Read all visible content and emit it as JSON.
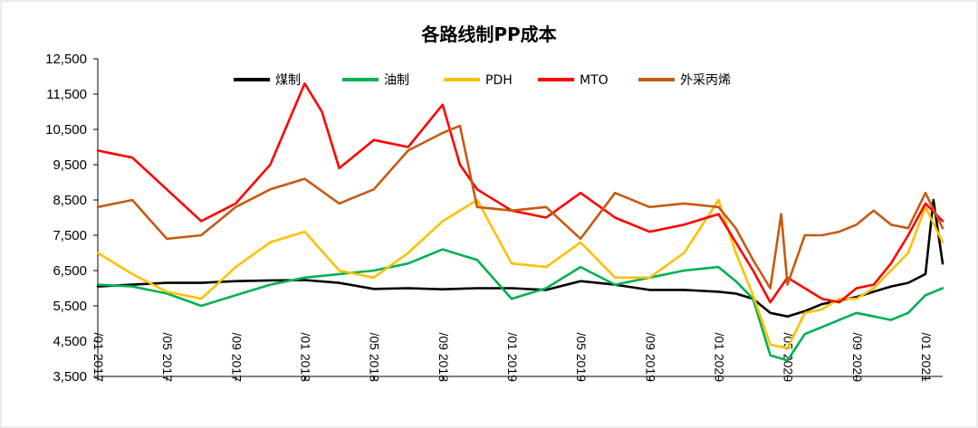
{
  "chart_data": {
    "type": "line",
    "title": "各路线制PP成本",
    "xlabel": "",
    "ylabel": "",
    "ylim": [
      3500,
      12500
    ],
    "yticks": [
      "12,500",
      "11,500",
      "10,500",
      "9,500",
      "8,500",
      "7,500",
      "6,500",
      "5,500",
      "4,500",
      "3,500"
    ],
    "x_tick_labels": [
      "2017/01",
      "2017/05",
      "2017/09",
      "2018/01",
      "2018/05",
      "2018/09",
      "2019/01",
      "2019/05",
      "2019/09",
      "2020/01",
      "2020/05",
      "2020/09",
      "2021/01"
    ],
    "x_range": [
      "2017-01",
      "2021-02"
    ],
    "grid": false,
    "legend_position": "top",
    "series": [
      {
        "name": "煤制",
        "color": "#000000",
        "x": [
          "2017-01",
          "2017-03",
          "2017-05",
          "2017-07",
          "2017-09",
          "2017-11",
          "2018-01",
          "2018-03",
          "2018-05",
          "2018-07",
          "2018-09",
          "2018-11",
          "2019-01",
          "2019-03",
          "2019-05",
          "2019-07",
          "2019-09",
          "2019-11",
          "2020-01",
          "2020-02",
          "2020-03",
          "2020-04",
          "2020-05",
          "2020-06",
          "2020-07",
          "2020-08",
          "2020-09",
          "2020-10",
          "2020-11",
          "2020-12",
          "2021-01",
          "2021-01-15",
          "2021-02"
        ],
        "values": [
          6050,
          6100,
          6150,
          6150,
          6200,
          6220,
          6230,
          6150,
          5980,
          6000,
          5970,
          6000,
          6000,
          5950,
          6200,
          6100,
          5950,
          5950,
          5900,
          5850,
          5700,
          5300,
          5200,
          5350,
          5550,
          5650,
          5750,
          5900,
          6050,
          6150,
          6400,
          8500,
          6700
        ]
      },
      {
        "name": "油制",
        "color": "#00B050",
        "x": [
          "2017-01",
          "2017-03",
          "2017-05",
          "2017-07",
          "2017-09",
          "2017-11",
          "2018-01",
          "2018-03",
          "2018-05",
          "2018-07",
          "2018-09",
          "2018-11",
          "2019-01",
          "2019-03",
          "2019-05",
          "2019-07",
          "2019-09",
          "2019-11",
          "2020-01",
          "2020-02",
          "2020-03",
          "2020-04",
          "2020-05",
          "2020-06",
          "2020-07",
          "2020-08",
          "2020-09",
          "2020-10",
          "2020-11",
          "2020-12",
          "2021-01",
          "2021-02"
        ],
        "values": [
          6100,
          6050,
          5850,
          5500,
          5800,
          6100,
          6300,
          6400,
          6500,
          6700,
          7100,
          6800,
          5700,
          6000,
          6600,
          6100,
          6300,
          6500,
          6600,
          6200,
          5700,
          4100,
          3950,
          4700,
          4900,
          5100,
          5300,
          5200,
          5100,
          5300,
          5800,
          6000
        ]
      },
      {
        "name": "PDH",
        "color": "#FFC000",
        "x": [
          "2017-01",
          "2017-03",
          "2017-05",
          "2017-07",
          "2017-09",
          "2017-11",
          "2018-01",
          "2018-03",
          "2018-05",
          "2018-07",
          "2018-09",
          "2018-11",
          "2019-01",
          "2019-03",
          "2019-05",
          "2019-07",
          "2019-09",
          "2019-11",
          "2020-01",
          "2020-02",
          "2020-03",
          "2020-04",
          "2020-05",
          "2020-06",
          "2020-07",
          "2020-08",
          "2020-09",
          "2020-10",
          "2020-11",
          "2020-12",
          "2021-01",
          "2021-02"
        ],
        "values": [
          7000,
          6400,
          5900,
          5700,
          6600,
          7300,
          7600,
          6500,
          6300,
          7000,
          7900,
          8500,
          6700,
          6600,
          7300,
          6300,
          6300,
          7000,
          8500,
          7000,
          5800,
          4400,
          4300,
          5300,
          5400,
          5700,
          5700,
          6000,
          6500,
          7000,
          8300,
          7300
        ]
      },
      {
        "name": "MTO",
        "color": "#FF0000",
        "x": [
          "2017-01",
          "2017-03",
          "2017-05",
          "2017-07",
          "2017-09",
          "2017-11",
          "2018-01",
          "2018-02",
          "2018-03",
          "2018-05",
          "2018-07",
          "2018-09",
          "2018-10",
          "2018-11",
          "2019-01",
          "2019-03",
          "2019-05",
          "2019-07",
          "2019-09",
          "2019-11",
          "2020-01",
          "2020-02",
          "2020-03",
          "2020-04",
          "2020-05",
          "2020-06",
          "2020-07",
          "2020-08",
          "2020-09",
          "2020-10",
          "2020-11",
          "2020-12",
          "2021-01",
          "2021-02"
        ],
        "values": [
          9900,
          9700,
          8800,
          7900,
          8400,
          9500,
          11800,
          11000,
          9400,
          10200,
          10000,
          11200,
          9500,
          8800,
          8200,
          8000,
          8700,
          8000,
          7600,
          7800,
          8100,
          7300,
          6500,
          5600,
          6300,
          6000,
          5700,
          5600,
          6000,
          6100,
          6700,
          7500,
          8400,
          7900
        ]
      },
      {
        "name": "外采丙烯",
        "color": "#C55A11",
        "x": [
          "2017-01",
          "2017-03",
          "2017-05",
          "2017-07",
          "2017-09",
          "2017-11",
          "2018-01",
          "2018-03",
          "2018-05",
          "2018-07",
          "2018-09",
          "2018-10",
          "2018-11",
          "2019-01",
          "2019-03",
          "2019-05",
          "2019-07",
          "2019-09",
          "2019-11",
          "2020-01",
          "2020-02",
          "2020-03",
          "2020-04",
          "2020-04-20",
          "2020-05",
          "2020-06",
          "2020-07",
          "2020-08",
          "2020-09",
          "2020-10",
          "2020-11",
          "2020-12",
          "2021-01",
          "2021-02"
        ],
        "values": [
          8300,
          8500,
          7400,
          7500,
          8300,
          8800,
          9100,
          8400,
          8800,
          9900,
          10400,
          10600,
          8300,
          8200,
          8300,
          7400,
          8700,
          8300,
          8400,
          8300,
          7700,
          6800,
          6000,
          8100,
          6100,
          7500,
          7500,
          7600,
          7800,
          8200,
          7800,
          7700,
          8700,
          7700
        ]
      }
    ]
  }
}
